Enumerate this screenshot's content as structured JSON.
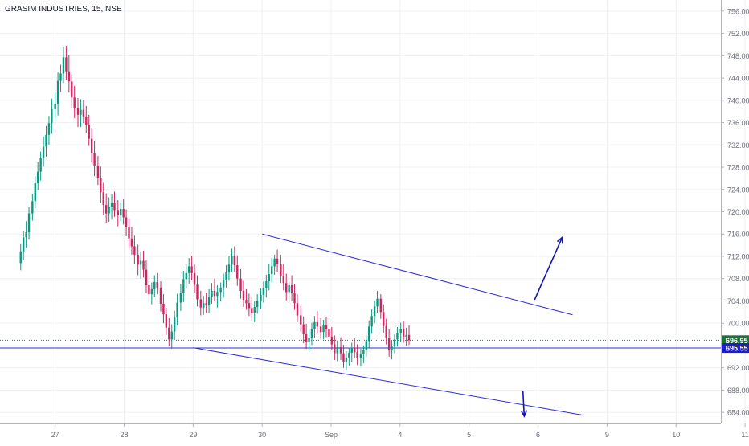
{
  "header": {
    "symbol": "GRASIM INDUSTRIES",
    "interval": "15",
    "exchange": "NSE",
    "sep1": ", ",
    "sep2": ", "
  },
  "chart_data": {
    "type": "candlestick",
    "title": "GRASIM INDUSTRIES, 15, NSE",
    "ylim": [
      682,
      758
    ],
    "y_ticks": [
      "756.00",
      "752.00",
      "748.00",
      "744.00",
      "740.00",
      "736.00",
      "732.00",
      "728.00",
      "724.00",
      "720.00",
      "716.00",
      "712.00",
      "708.00",
      "704.00",
      "700.00",
      "696.00",
      "692.00",
      "688.00",
      "684.00"
    ],
    "x_ticks": [
      "27",
      "28",
      "29",
      "30",
      "Sep",
      "4",
      "5",
      "6",
      "9",
      "10",
      "11"
    ],
    "x_tick_positions": [
      0.5,
      1.5,
      2.5,
      3.5,
      4.5,
      5.5,
      6.5,
      7.5,
      8.5,
      9.5,
      10.5
    ],
    "x_range": [
      -0.3,
      10.15
    ],
    "grid": true,
    "price_labels": [
      {
        "text": "696.95",
        "value": 696.95,
        "color": "#1f6f3a"
      },
      {
        "text": "695.55",
        "value": 695.55,
        "color": "#1e1ec8"
      }
    ],
    "ohlc": [
      [
        0.0,
        710.8,
        714.2,
        709.5,
        712.9
      ],
      [
        0.04,
        712.9,
        716.5,
        711.3,
        715.4
      ],
      [
        0.08,
        715.4,
        718.3,
        713.6,
        716.3
      ],
      [
        0.12,
        716.3,
        720.8,
        715.0,
        719.7
      ],
      [
        0.17,
        719.7,
        723.2,
        718.4,
        721.9
      ],
      [
        0.21,
        721.9,
        726.4,
        720.6,
        725.1
      ],
      [
        0.25,
        725.1,
        728.9,
        723.9,
        727.2
      ],
      [
        0.29,
        727.2,
        730.8,
        725.6,
        729.6
      ],
      [
        0.33,
        729.6,
        733.5,
        728.1,
        731.7
      ],
      [
        0.37,
        731.7,
        735.4,
        729.9,
        733.8
      ],
      [
        0.41,
        733.8,
        737.2,
        732.0,
        735.9
      ],
      [
        0.45,
        735.9,
        740.3,
        734.0,
        738.4
      ],
      [
        0.5,
        738.4,
        741.4,
        736.7,
        739.4
      ],
      [
        0.54,
        739.4,
        745.0,
        737.3,
        743.5
      ],
      [
        0.58,
        743.5,
        746.4,
        741.5,
        744.8
      ],
      [
        0.62,
        744.8,
        749.6,
        743.1,
        747.7
      ],
      [
        0.66,
        747.7,
        749.8,
        743.7,
        745.2
      ],
      [
        0.7,
        745.2,
        748.1,
        741.4,
        743.4
      ],
      [
        0.74,
        743.4,
        744.6,
        738.5,
        740.5
      ],
      [
        0.78,
        740.5,
        742.6,
        736.8,
        738.6
      ],
      [
        0.83,
        738.6,
        740.4,
        735.2,
        737.4
      ],
      [
        0.87,
        737.4,
        740.2,
        735.2,
        738.3
      ],
      [
        0.91,
        738.3,
        740.1,
        735.9,
        737.1
      ],
      [
        0.95,
        737.1,
        739.0,
        734.2,
        735.6
      ],
      [
        0.99,
        735.6,
        737.4,
        731.8,
        733.1
      ],
      [
        1.03,
        733.1,
        735.1,
        728.8,
        730.5
      ],
      [
        1.07,
        730.5,
        732.7,
        726.4,
        728.3
      ],
      [
        1.12,
        728.3,
        730.0,
        724.8,
        726.1
      ],
      [
        1.16,
        726.1,
        728.1,
        721.6,
        723.5
      ],
      [
        1.2,
        723.5,
        725.2,
        719.5,
        721.2
      ],
      [
        1.24,
        721.2,
        723.3,
        718.0,
        719.7
      ],
      [
        1.28,
        719.7,
        722.6,
        718.2,
        720.8
      ],
      [
        1.32,
        720.8,
        723.1,
        718.6,
        721.6
      ],
      [
        1.36,
        721.6,
        723.6,
        719.1,
        720.3
      ],
      [
        1.41,
        720.3,
        722.1,
        717.4,
        719.5
      ],
      [
        1.45,
        719.5,
        721.7,
        718.3,
        720.5
      ],
      [
        1.49,
        720.5,
        722.2,
        717.7,
        719.0
      ],
      [
        1.53,
        719.0,
        720.4,
        715.6,
        717.3
      ],
      [
        1.57,
        717.3,
        718.8,
        713.5,
        715.2
      ],
      [
        1.61,
        715.2,
        717.2,
        712.3,
        713.8
      ],
      [
        1.65,
        713.8,
        715.7,
        710.7,
        712.3
      ],
      [
        1.7,
        712.3,
        714.1,
        708.6,
        710.5
      ],
      [
        1.74,
        710.5,
        712.8,
        708.0,
        711.2
      ],
      [
        1.78,
        711.2,
        713.0,
        708.2,
        709.6
      ],
      [
        1.82,
        709.6,
        711.3,
        705.4,
        706.8
      ],
      [
        1.86,
        706.8,
        708.1,
        703.8,
        705.2
      ],
      [
        1.9,
        705.2,
        707.3,
        703.4,
        706.1
      ],
      [
        1.94,
        706.1,
        708.6,
        704.7,
        707.4
      ],
      [
        1.98,
        707.4,
        709.0,
        705.2,
        706.4
      ],
      [
        2.03,
        706.4,
        707.5,
        702.1,
        703.5
      ],
      [
        2.07,
        703.5,
        705.2,
        700.0,
        701.6
      ],
      [
        2.11,
        701.6,
        702.8,
        697.9,
        699.2
      ],
      [
        2.15,
        699.2,
        700.9,
        695.9,
        697.1
      ],
      [
        2.19,
        697.1,
        699.8,
        695.4,
        698.5
      ],
      [
        2.23,
        698.5,
        702.2,
        697.0,
        701.0
      ],
      [
        2.27,
        701.0,
        705.3,
        699.6,
        703.7
      ],
      [
        2.32,
        703.7,
        707.0,
        702.2,
        705.4
      ],
      [
        2.36,
        705.4,
        709.4,
        703.8,
        707.9
      ],
      [
        2.4,
        707.9,
        710.6,
        706.2,
        709.0
      ],
      [
        2.44,
        709.0,
        711.7,
        707.1,
        710.2
      ],
      [
        2.48,
        710.2,
        712.1,
        707.7,
        709.0
      ],
      [
        2.52,
        709.0,
        710.5,
        705.5,
        706.9
      ],
      [
        2.56,
        706.9,
        708.6,
        703.0,
        704.3
      ],
      [
        2.61,
        704.3,
        705.8,
        701.4,
        702.8
      ],
      [
        2.65,
        702.8,
        704.9,
        701.5,
        703.6
      ],
      [
        2.69,
        703.6,
        705.5,
        701.8,
        703.2
      ],
      [
        2.73,
        703.2,
        706.1,
        701.9,
        704.7
      ],
      [
        2.77,
        704.7,
        707.2,
        703.5,
        705.8
      ],
      [
        2.81,
        705.8,
        708.0,
        703.9,
        704.9
      ],
      [
        2.85,
        704.9,
        706.8,
        702.8,
        705.6
      ],
      [
        2.9,
        705.6,
        707.3,
        703.9,
        706.4
      ],
      [
        2.94,
        706.4,
        708.9,
        704.6,
        707.7
      ],
      [
        2.98,
        707.7,
        710.4,
        706.4,
        709.1
      ],
      [
        3.02,
        709.1,
        712.1,
        707.6,
        710.5
      ],
      [
        3.06,
        710.5,
        713.4,
        709.1,
        712.0
      ],
      [
        3.1,
        712.0,
        713.8,
        709.1,
        710.4
      ],
      [
        3.14,
        710.4,
        712.2,
        706.7,
        708.0
      ],
      [
        3.19,
        708.0,
        709.7,
        704.4,
        705.8
      ],
      [
        3.23,
        705.8,
        707.6,
        702.9,
        704.2
      ],
      [
        3.27,
        704.2,
        706.1,
        702.4,
        703.6
      ],
      [
        3.31,
        703.6,
        705.3,
        701.3,
        702.7
      ],
      [
        3.35,
        702.7,
        704.6,
        700.5,
        701.9
      ],
      [
        3.39,
        701.9,
        703.9,
        700.2,
        702.9
      ],
      [
        3.43,
        702.9,
        705.2,
        701.7,
        704.0
      ],
      [
        3.48,
        704.0,
        706.2,
        702.6,
        705.1
      ],
      [
        3.52,
        705.1,
        707.5,
        703.7,
        706.3
      ],
      [
        3.56,
        706.3,
        708.7,
        704.6,
        707.5
      ],
      [
        3.6,
        707.5,
        710.7,
        705.9,
        708.8
      ],
      [
        3.64,
        708.8,
        711.8,
        707.3,
        710.2
      ],
      [
        3.68,
        710.2,
        712.3,
        708.7,
        711.6
      ],
      [
        3.72,
        711.6,
        713.2,
        709.2,
        710.6
      ],
      [
        3.77,
        710.6,
        712.3,
        707.2,
        708.5
      ],
      [
        3.81,
        708.5,
        710.6,
        705.9,
        707.2
      ],
      [
        3.85,
        707.2,
        708.9,
        704.1,
        705.6
      ],
      [
        3.89,
        705.6,
        707.5,
        703.7,
        706.8
      ],
      [
        3.93,
        706.8,
        708.6,
        704.0,
        705.5
      ],
      [
        3.97,
        705.5,
        707.1,
        702.4,
        703.6
      ],
      [
        4.01,
        703.6,
        705.2,
        700.2,
        701.4
      ],
      [
        4.06,
        701.4,
        703.1,
        698.5,
        699.8
      ],
      [
        4.1,
        699.8,
        701.2,
        696.4,
        698.0
      ],
      [
        4.14,
        698.0,
        699.9,
        695.4,
        696.7
      ],
      [
        4.18,
        696.7,
        698.8,
        695.2,
        697.4
      ],
      [
        4.22,
        697.4,
        700.1,
        696.1,
        698.9
      ],
      [
        4.26,
        698.9,
        701.3,
        697.3,
        700.2
      ],
      [
        4.3,
        700.2,
        702.2,
        698.2,
        699.4
      ],
      [
        4.35,
        699.4,
        700.9,
        697.2,
        698.4
      ],
      [
        4.39,
        698.4,
        700.6,
        697.1,
        699.6
      ],
      [
        4.43,
        699.6,
        701.2,
        697.5,
        698.9
      ],
      [
        4.47,
        698.9,
        700.5,
        696.8,
        697.6
      ],
      [
        4.51,
        697.6,
        699.3,
        695.2,
        696.2
      ],
      [
        4.55,
        696.2,
        697.8,
        693.4,
        694.6
      ],
      [
        4.59,
        694.6,
        696.9,
        693.2,
        695.7
      ],
      [
        4.64,
        695.7,
        697.5,
        693.4,
        694.6
      ],
      [
        4.68,
        694.6,
        696.1,
        692.0,
        693.1
      ],
      [
        4.72,
        693.1,
        695.0,
        691.6,
        693.8
      ],
      [
        4.76,
        693.8,
        695.6,
        692.4,
        694.7
      ],
      [
        4.8,
        694.7,
        696.5,
        693.0,
        695.6
      ],
      [
        4.84,
        695.6,
        697.3,
        693.7,
        694.8
      ],
      [
        4.88,
        694.8,
        696.2,
        692.5,
        693.7
      ],
      [
        4.93,
        693.7,
        695.4,
        692.2,
        694.4
      ],
      [
        4.97,
        694.4,
        696.0,
        692.8,
        695.2
      ],
      [
        5.01,
        695.2,
        697.8,
        694.0,
        696.8
      ],
      [
        5.05,
        696.8,
        700.5,
        695.6,
        699.4
      ],
      [
        5.09,
        699.4,
        702.5,
        698.1,
        701.3
      ],
      [
        5.13,
        701.3,
        704.1,
        700.0,
        703.0
      ],
      [
        5.17,
        703.0,
        705.8,
        701.9,
        704.4
      ],
      [
        5.22,
        704.4,
        705.2,
        700.8,
        702.0
      ],
      [
        5.26,
        702.0,
        703.4,
        698.3,
        699.5
      ],
      [
        5.3,
        699.5,
        700.8,
        696.2,
        697.4
      ],
      [
        5.34,
        697.4,
        698.9,
        694.0,
        695.1
      ],
      [
        5.38,
        695.1,
        697.0,
        693.5,
        695.8
      ],
      [
        5.42,
        695.8,
        698.0,
        694.6,
        697.1
      ],
      [
        5.46,
        697.1,
        699.3,
        695.8,
        698.2
      ],
      [
        5.51,
        698.2,
        700.1,
        696.6,
        699.0
      ],
      [
        5.55,
        699.0,
        700.3,
        696.5,
        697.6
      ],
      [
        5.59,
        697.6,
        699.2,
        696.0,
        697.9
      ],
      [
        5.63,
        697.9,
        699.6,
        696.1,
        696.95
      ]
    ],
    "annotations": {
      "channel_upper": [
        [
          3.5,
          716.0
        ],
        [
          8.0,
          701.5
        ]
      ],
      "channel_lower": [
        [
          2.5,
          695.6
        ],
        [
          8.15,
          683.5
        ]
      ],
      "horizontal_line": 695.55,
      "horizontal_dotted": 696.95,
      "arrow_up": {
        "from": [
          7.45,
          704.2
        ],
        "to": [
          7.85,
          715.4
        ]
      },
      "arrow_down": {
        "from": [
          7.28,
          687.9
        ],
        "to": [
          7.3,
          683.3
        ]
      }
    },
    "colors": {
      "up": "#089981",
      "down": "#d0245f",
      "line": "#2b2bd6",
      "grid": "#eef0f4",
      "axis": "#6a6d78"
    }
  }
}
